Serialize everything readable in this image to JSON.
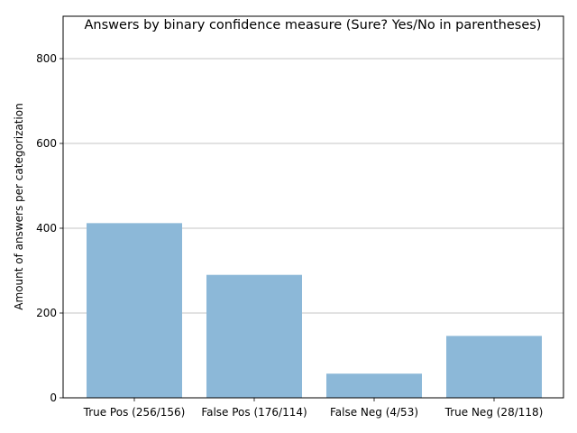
{
  "chart_data": {
    "type": "bar",
    "title": "Answers by binary confidence measure (Sure? Yes/No in parentheses)",
    "xlabel": "",
    "ylabel": "Amount of answers per categorization",
    "categories": [
      "True Pos (256/156)",
      "False Pos (176/114)",
      "False Neg (4/53)",
      "True Neg (28/118)"
    ],
    "values": [
      412,
      290,
      57,
      146
    ],
    "ylim": [
      0,
      900
    ],
    "yticks": [
      0,
      200,
      400,
      600,
      800
    ],
    "ytick_labels": [
      "0",
      "200",
      "400",
      "600",
      "800"
    ],
    "grid": "y",
    "colors": {
      "bar": "#8cb8d8",
      "grid": "#b0b0b0",
      "axis": "#000000"
    }
  }
}
